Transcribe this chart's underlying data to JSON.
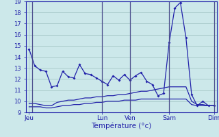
{
  "background_color": "#cce8ea",
  "grid_color": "#aacccc",
  "line_color": "#2222aa",
  "vline_color": "#444488",
  "xlabel": "Température (°c)",
  "ylim": [
    9,
    19
  ],
  "yticks": [
    9,
    10,
    11,
    12,
    13,
    14,
    15,
    16,
    17,
    18,
    19
  ],
  "x_ticks_labels": [
    "Jeu",
    "Lun",
    "Ven",
    "Sam",
    "Dim"
  ],
  "x_ticks_pos": [
    0,
    13,
    18,
    25,
    33
  ],
  "xlim": [
    -0.5,
    33.5
  ],
  "series1_x": [
    0,
    1,
    2,
    3,
    4,
    5,
    6,
    7,
    8,
    9,
    10,
    11,
    12,
    13,
    14,
    15,
    16,
    17,
    18,
    19,
    20,
    21,
    22,
    23,
    24,
    25,
    26,
    27,
    28,
    29,
    30,
    31,
    32,
    33
  ],
  "series1_y": [
    14.7,
    13.2,
    12.8,
    12.7,
    11.3,
    11.4,
    12.7,
    12.2,
    12.1,
    13.3,
    12.5,
    12.4,
    12.1,
    11.8,
    11.5,
    12.3,
    11.9,
    12.4,
    11.9,
    12.3,
    12.6,
    11.8,
    11.5,
    10.5,
    10.7,
    15.3,
    18.4,
    18.9,
    15.7,
    10.6,
    9.6,
    10.0,
    9.6,
    9.6
  ],
  "series2_x": [
    0,
    1,
    2,
    3,
    4,
    5,
    6,
    7,
    8,
    9,
    10,
    11,
    12,
    13,
    14,
    15,
    16,
    17,
    18,
    19,
    20,
    21,
    22,
    23,
    24,
    25,
    26,
    27,
    28,
    29,
    30,
    31,
    32,
    33
  ],
  "series2_y": [
    9.8,
    9.8,
    9.7,
    9.6,
    9.6,
    9.9,
    10.0,
    10.1,
    10.1,
    10.2,
    10.3,
    10.3,
    10.4,
    10.4,
    10.5,
    10.5,
    10.6,
    10.6,
    10.7,
    10.8,
    10.9,
    10.9,
    11.0,
    11.1,
    11.2,
    11.3,
    11.3,
    11.3,
    11.3,
    10.0,
    9.7,
    9.7,
    9.6,
    9.6
  ],
  "series3_x": [
    0,
    1,
    2,
    3,
    4,
    5,
    6,
    7,
    8,
    9,
    10,
    11,
    12,
    13,
    14,
    15,
    16,
    17,
    18,
    19,
    20,
    21,
    22,
    23,
    24,
    25,
    26,
    27,
    28,
    29,
    30,
    31,
    32,
    33
  ],
  "series3_y": [
    9.5,
    9.5,
    9.5,
    9.4,
    9.4,
    9.5,
    9.6,
    9.6,
    9.7,
    9.7,
    9.8,
    9.8,
    9.9,
    9.9,
    10.0,
    10.0,
    10.0,
    10.1,
    10.1,
    10.1,
    10.2,
    10.2,
    10.2,
    10.2,
    10.2,
    10.2,
    10.2,
    10.2,
    10.2,
    9.7,
    9.6,
    9.6,
    9.6,
    9.6
  ]
}
